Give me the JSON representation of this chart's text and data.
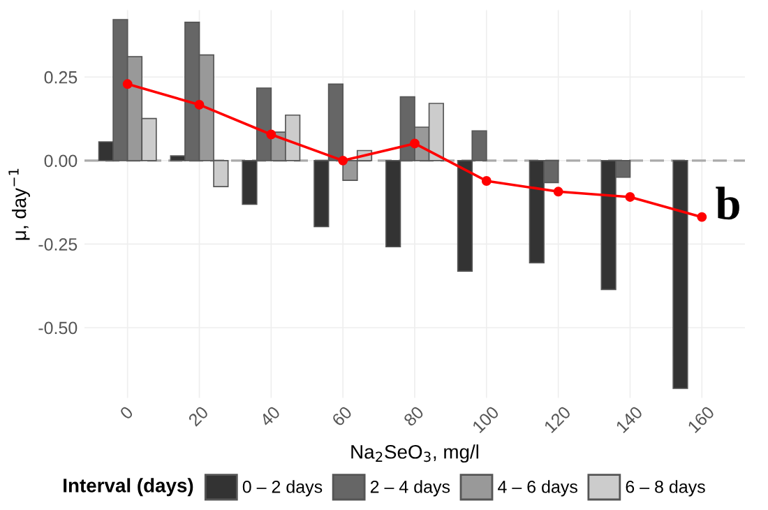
{
  "chart_data": {
    "type": "bar",
    "xlabel": "Na$_{2}$SeO$_{3}$, mg/l",
    "ylabel": "μ, day$^{−1}$",
    "legend_title": "Interval (days)",
    "categories": [
      "0",
      "20",
      "40",
      "60",
      "80",
      "100",
      "120",
      "140",
      "160"
    ],
    "series": [
      {
        "name": "0 – 2 days",
        "color": "#333333",
        "values": [
          0.056,
          0.014,
          -0.131,
          -0.198,
          -0.258,
          -0.331,
          -0.306,
          -0.386,
          -0.682
        ]
      },
      {
        "name": "2 – 4 days",
        "color": "#666666",
        "values": [
          0.422,
          0.414,
          0.217,
          0.229,
          0.191,
          0.089,
          -0.066,
          -0.05,
          null
        ]
      },
      {
        "name": "4 – 6 days",
        "color": "#999999",
        "values": [
          0.311,
          0.316,
          0.085,
          -0.059,
          0.1,
          null,
          null,
          null,
          null
        ]
      },
      {
        "name": "6 – 8 days",
        "color": "#cccccc",
        "values": [
          0.126,
          -0.078,
          0.136,
          0.03,
          0.171,
          null,
          null,
          null,
          null
        ]
      },
      {
        "type": "line",
        "color": "#ff0000",
        "marker": "circle",
        "values": [
          0.229,
          0.167,
          0.078,
          0.0,
          0.051,
          -0.061,
          -0.093,
          -0.109,
          -0.169
        ]
      }
    ],
    "ylim": [
      -0.71,
      0.45
    ],
    "yticks": [
      {
        "value": -0.5,
        "label": "-0.50"
      },
      {
        "value": -0.25,
        "label": "-0.25"
      },
      {
        "value": 0,
        "label": "0.00"
      },
      {
        "value": 0.25,
        "label": "0.25"
      }
    ],
    "ref_lines": [
      {
        "axis": "y",
        "value": 0,
        "color": "#aaaaaa",
        "line_style": "dashed"
      }
    ],
    "annotations": [
      "b"
    ],
    "grid": true,
    "legend": "bottom"
  }
}
